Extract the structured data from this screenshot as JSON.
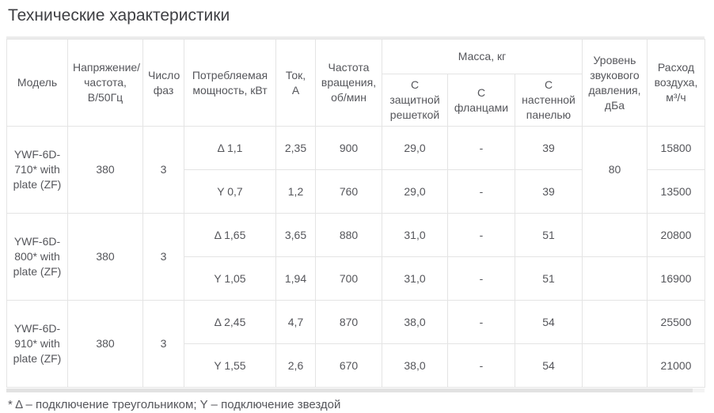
{
  "page": {
    "title": "Технические характеристики",
    "footnote": "* Δ – подключение треугольником; Y – подключение звездой"
  },
  "colors": {
    "row_shade": "#f6f6f6",
    "subheader_shade": "#fafafa",
    "border": "#e4e4e4",
    "text": "#55565b"
  },
  "table": {
    "headers": {
      "model": "Модель",
      "voltage": "Напряжение/частота, В/50Гц",
      "phases": "Число фаз",
      "power": "Потребляемая мощность, кВт",
      "current": "Ток, А",
      "speed": "Частота вращения, об/мин",
      "mass_group": "Масса, кг",
      "mass_grille": "С защитной решеткой",
      "mass_flanges": "С фланцами",
      "mass_panel": "С настенной панелью",
      "noise": "Уровень звукового давления, дБа",
      "airflow": "Расход воздуха, м³/ч"
    },
    "rows": [
      {
        "model": "YWF-6D-710* with plate (ZF)",
        "voltage": "380",
        "phases": "3",
        "noise": "80",
        "variants": [
          {
            "power": "Δ 1,1",
            "current": "2,35",
            "speed": "900",
            "mass_grille": "29,0",
            "mass_flanges": "-",
            "mass_panel": "39",
            "airflow": "15800"
          },
          {
            "power": "Y 0,7",
            "current": "1,2",
            "speed": "760",
            "mass_grille": "29,0",
            "mass_flanges": "-",
            "mass_panel": "39",
            "airflow": "13500"
          }
        ]
      },
      {
        "model": "YWF-6D-800* with plate (ZF)",
        "voltage": "380",
        "phases": "3",
        "noise": "",
        "variants": [
          {
            "power": "Δ 1,65",
            "current": "3,65",
            "speed": "880",
            "mass_grille": "31,0",
            "mass_flanges": "-",
            "mass_panel": "51",
            "airflow": "20800"
          },
          {
            "power": "Y 1,05",
            "current": "1,94",
            "speed": "700",
            "mass_grille": "31,0",
            "mass_flanges": "-",
            "mass_panel": "51",
            "airflow": "16900"
          }
        ]
      },
      {
        "model": "YWF-6D-910* with plate (ZF)",
        "voltage": "380",
        "phases": "3",
        "noise": "",
        "variants": [
          {
            "power": "Δ 2,45",
            "current": "4,7",
            "speed": "870",
            "mass_grille": "38,0",
            "mass_flanges": "-",
            "mass_panel": "54",
            "airflow": "25500"
          },
          {
            "power": "Y 1,55",
            "current": "2,6",
            "speed": "670",
            "mass_grille": "38,0",
            "mass_flanges": "-",
            "mass_panel": "54",
            "airflow": "21000"
          }
        ]
      }
    ]
  }
}
